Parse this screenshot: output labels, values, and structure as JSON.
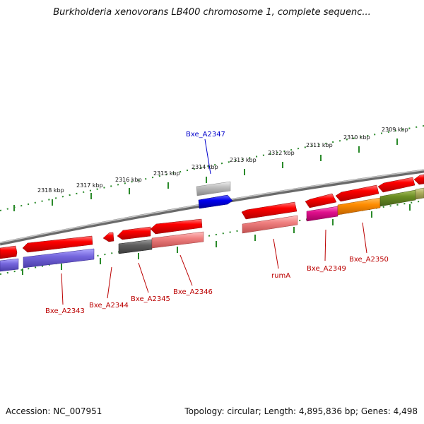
{
  "header": {
    "title": "Burkholderia xenovorans LB400 chromosome 1, complete sequenc..."
  },
  "footer": {
    "accession": "Accession: NC_007951",
    "stats": "Topology: circular; Length: 4,895,836 bp; Genes: 4,498"
  },
  "ruler": {
    "ticks": [
      "2318 kbp",
      "2317 kbp",
      "2316 kbp",
      "2315 kbp",
      "2314 kbp",
      "2313 kbp",
      "2312 kbp",
      "2311 kbp",
      "2310 kbp",
      "2309 kbp"
    ]
  },
  "genes": {
    "labels": [
      "Bxe_A2343",
      "Bxe_A2344",
      "Bxe_A2345",
      "Bxe_A2346",
      "rumA",
      "Bxe_A2349",
      "Bxe_A2350",
      "Bxe_A2347"
    ]
  },
  "colors": {
    "gene_forward": "#ff0000",
    "label_red": "#bb0000",
    "label_blue": "#0000cc",
    "tick_green": "#2a8a2a",
    "backbone": "#888888"
  }
}
